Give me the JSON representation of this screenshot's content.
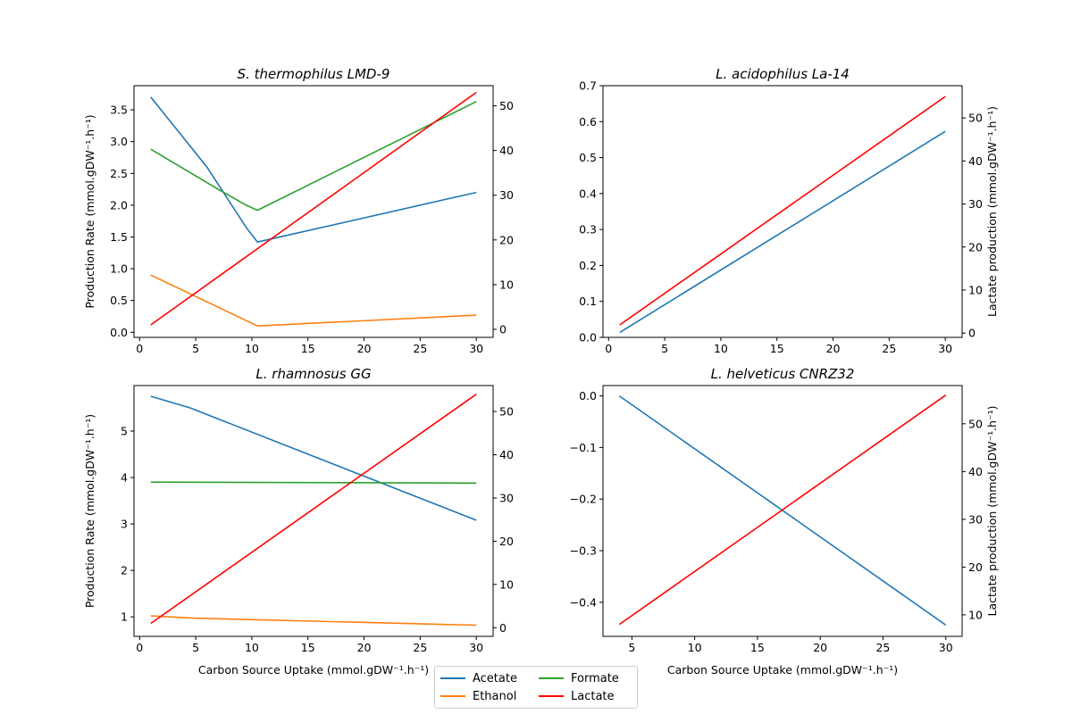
{
  "chart_data": [
    {
      "type": "line",
      "title": "S. thermophilus LMD-9",
      "xlabel": "",
      "ylabel": "Production Rate (mmol.gDW⁻¹.h⁻¹)",
      "ylabel2": "",
      "xlim": [
        -0.5,
        31.5
      ],
      "ylim": [
        -0.08,
        3.88
      ],
      "ylim2": [
        -1.8,
        54.5
      ],
      "xticks": [
        "0",
        "5",
        "10",
        "15",
        "20",
        "25",
        "30"
      ],
      "yticks": [
        "0.0",
        "0.5",
        "1.0",
        "1.5",
        "2.0",
        "2.5",
        "3.0",
        "3.5"
      ],
      "yticks2": [
        "0",
        "10",
        "20",
        "30",
        "40",
        "50"
      ],
      "series": [
        {
          "name": "Acetate",
          "axis": "left",
          "color": "#1f77b4",
          "x": [
            1,
            6,
            9.5,
            10.5,
            30
          ],
          "y": [
            3.7,
            2.6,
            1.65,
            1.42,
            2.2
          ]
        },
        {
          "name": "Ethanol",
          "axis": "left",
          "color": "#ff7f0e",
          "x": [
            1,
            10.5,
            30
          ],
          "y": [
            0.9,
            0.1,
            0.27
          ]
        },
        {
          "name": "Formate",
          "axis": "left",
          "color": "#2ca02c",
          "x": [
            1,
            7,
            9.5,
            10.5,
            30
          ],
          "y": [
            2.88,
            2.25,
            2.0,
            1.92,
            3.63
          ]
        },
        {
          "name": "Lactate",
          "axis": "right",
          "color": "#ff0000",
          "x": [
            1,
            30
          ],
          "y": [
            1,
            53
          ]
        }
      ]
    },
    {
      "type": "line",
      "title": "L. acidophilus La-14",
      "xlabel": "",
      "ylabel": "",
      "ylabel2": "Lactate production (mmol.gDW⁻¹.h⁻¹)",
      "xlim": [
        -0.5,
        31.5
      ],
      "ylim": [
        0.0,
        0.7
      ],
      "ylim2": [
        -1,
        57.5
      ],
      "xticks": [
        "0",
        "5",
        "10",
        "15",
        "20",
        "25",
        "30"
      ],
      "yticks": [
        "0.0",
        "0.1",
        "0.2",
        "0.3",
        "0.4",
        "0.5",
        "0.6",
        "0.7"
      ],
      "yticks2": [
        "0",
        "10",
        "20",
        "30",
        "40",
        "50"
      ],
      "series": [
        {
          "name": "Acetate",
          "axis": "left",
          "color": "#1f77b4",
          "x": [
            1,
            30
          ],
          "y": [
            0.014,
            0.573
          ]
        },
        {
          "name": "Lactate",
          "axis": "right",
          "color": "#ff0000",
          "x": [
            1,
            30
          ],
          "y": [
            1.9,
            55
          ]
        }
      ]
    },
    {
      "type": "line",
      "title": "L. rhamnosus GG",
      "xlabel": "Carbon Source Uptake (mmol.gDW⁻¹.h⁻¹)",
      "ylabel": "Production Rate (mmol.gDW⁻¹.h⁻¹)",
      "ylabel2": "",
      "xlim": [
        -0.5,
        31.5
      ],
      "ylim": [
        0.58,
        5.98
      ],
      "ylim2": [
        -2,
        56
      ],
      "xticks": [
        "0",
        "5",
        "10",
        "15",
        "20",
        "25",
        "30"
      ],
      "yticks": [
        "1",
        "2",
        "3",
        "4",
        "5"
      ],
      "yticks2": [
        "0",
        "10",
        "20",
        "30",
        "40",
        "50"
      ],
      "series": [
        {
          "name": "Acetate",
          "axis": "left",
          "color": "#1f77b4",
          "x": [
            1,
            4.5,
            30
          ],
          "y": [
            5.75,
            5.5,
            3.08
          ]
        },
        {
          "name": "Ethanol",
          "axis": "left",
          "color": "#ff7f0e",
          "x": [
            1,
            5,
            30
          ],
          "y": [
            1.02,
            0.97,
            0.82
          ]
        },
        {
          "name": "Formate",
          "axis": "left",
          "color": "#2ca02c",
          "x": [
            1,
            30
          ],
          "y": [
            3.9,
            3.88
          ]
        },
        {
          "name": "Lactate",
          "axis": "right",
          "color": "#ff0000",
          "x": [
            1,
            30
          ],
          "y": [
            1,
            54
          ]
        }
      ]
    },
    {
      "type": "line",
      "title": "L. helveticus CNRZ32",
      "xlabel": "Carbon Source Uptake (mmol.gDW⁻¹.h⁻¹)",
      "ylabel": "",
      "ylabel2": "Lactate production (mmol.gDW⁻¹.h⁻¹)",
      "xlim": [
        2.7,
        31.3
      ],
      "ylim": [
        -0.466,
        0.02
      ],
      "ylim2": [
        5.5,
        58
      ],
      "xticks": [
        "5",
        "10",
        "15",
        "20",
        "25",
        "30"
      ],
      "yticks": [
        "−0.4",
        "−0.3",
        "−0.2",
        "−0.1",
        "0.0"
      ],
      "yticks2": [
        "10",
        "20",
        "30",
        "40",
        "50"
      ],
      "series": [
        {
          "name": "Acetate",
          "axis": "left",
          "color": "#1f77b4",
          "x": [
            4,
            30
          ],
          "y": [
            0.0,
            -0.444
          ]
        },
        {
          "name": "Lactate",
          "axis": "right",
          "color": "#ff0000",
          "x": [
            4,
            30
          ],
          "y": [
            8,
            56
          ]
        }
      ]
    }
  ],
  "legend": {
    "placement": "bottom-center",
    "items": [
      {
        "label": "Acetate",
        "color": "#1f77b4"
      },
      {
        "label": "Ethanol",
        "color": "#ff7f0e"
      },
      {
        "label": "Formate",
        "color": "#2ca02c"
      },
      {
        "label": "Lactate",
        "color": "#ff0000"
      }
    ]
  }
}
